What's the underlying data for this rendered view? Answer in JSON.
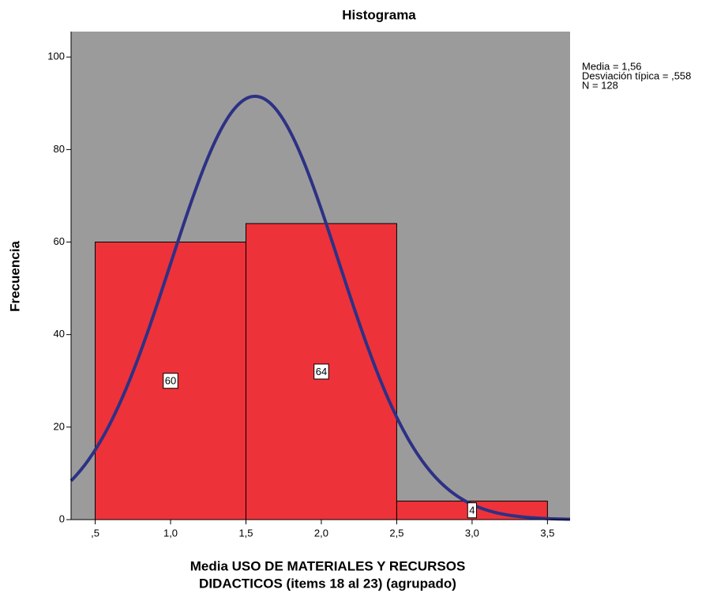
{
  "chart_data": {
    "type": "histogram",
    "title": "Histograma",
    "x_label": [
      "Media USO DE MATERIALES Y RECURSOS",
      "DIDACTICOS (items 18 al 23) (agrupado)"
    ],
    "y_label": "Frecuencia",
    "bins": [
      0.5,
      1.5,
      2.5,
      3.5
    ],
    "counts": [
      60,
      64,
      4
    ],
    "color": "#ee3239",
    "background": "#9b9b9b",
    "curve_color": "#2d3185",
    "xlim": [
      0.34,
      3.65
    ],
    "ylim": [
      0,
      105.5
    ],
    "xticks": [
      {
        "value": 0.5,
        "label": ",5"
      },
      {
        "value": 1.0,
        "label": "1,0"
      },
      {
        "value": 1.5,
        "label": "1,5"
      },
      {
        "value": 2.0,
        "label": "2,0"
      },
      {
        "value": 2.5,
        "label": "2,5"
      },
      {
        "value": 3.0,
        "label": "3,0"
      },
      {
        "value": 3.5,
        "label": "3,5"
      }
    ],
    "yticks": [
      0,
      20,
      40,
      60,
      80,
      100
    ],
    "stats": [
      {
        "value": 1.56,
        "label": "Media = 1,56"
      },
      {
        "value": 0.558,
        "label": "Desviación típica = ,558"
      },
      {
        "value": 128,
        "label": "N = 128"
      }
    ]
  }
}
